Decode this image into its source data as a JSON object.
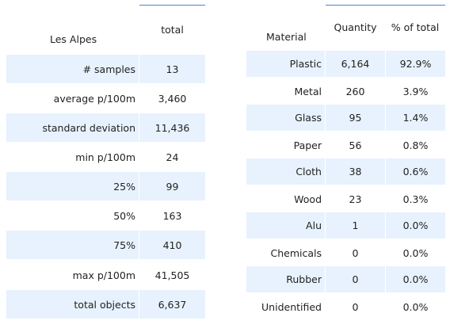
{
  "left_table": {
    "corner_label": "Les Alpes",
    "value_header": "total",
    "rows": [
      {
        "label": "# samples",
        "value": "13"
      },
      {
        "label": "average p/100m",
        "value": "3,460"
      },
      {
        "label": "standard deviation",
        "value": "11,436"
      },
      {
        "label": "min p/100m",
        "value": "24"
      },
      {
        "label": "25%",
        "value": "99"
      },
      {
        "label": "50%",
        "value": "163"
      },
      {
        "label": "75%",
        "value": "410"
      },
      {
        "label": "max p/100m",
        "value": "41,505"
      },
      {
        "label": "total objects",
        "value": "6,637"
      }
    ]
  },
  "right_table": {
    "corner_label": "Material",
    "headers": [
      "Quantity",
      "% of total"
    ],
    "rows": [
      {
        "material": "Plastic",
        "quantity": "6,164",
        "percent": "92.9%"
      },
      {
        "material": "Metal",
        "quantity": "260",
        "percent": "3.9%"
      },
      {
        "material": "Glass",
        "quantity": "95",
        "percent": "1.4%"
      },
      {
        "material": "Paper",
        "quantity": "56",
        "percent": "0.8%"
      },
      {
        "material": "Cloth",
        "quantity": "38",
        "percent": "0.6%"
      },
      {
        "material": "Wood",
        "quantity": "23",
        "percent": "0.3%"
      },
      {
        "material": "Alu",
        "quantity": "1",
        "percent": "0.0%"
      },
      {
        "material": "Chemicals",
        "quantity": "0",
        "percent": "0.0%"
      },
      {
        "material": "Rubber",
        "quantity": "0",
        "percent": "0.0%"
      },
      {
        "material": "Unidentified",
        "quantity": "0",
        "percent": "0.0%"
      }
    ]
  },
  "colors": {
    "shaded_row": "#e8f2fe",
    "accent_line": "#4a86c8",
    "text": "#222222"
  }
}
